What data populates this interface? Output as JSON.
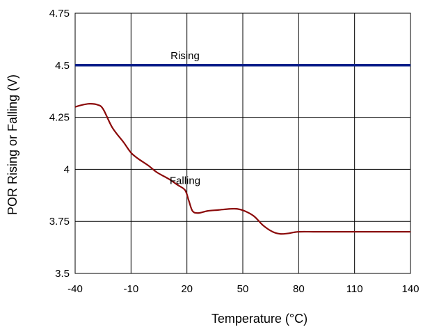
{
  "chart_data": {
    "type": "line",
    "title": "",
    "xlabel": "Temperature (°C)",
    "ylabel": "POR Rising or Falling (V)",
    "xlim": [
      -40,
      140
    ],
    "ylim": [
      3.5,
      4.75
    ],
    "x_ticks": [
      "-40",
      "-10",
      "20",
      "50",
      "80",
      "110",
      "140"
    ],
    "x_tick_values": [
      -40,
      -10,
      20,
      50,
      80,
      110,
      140
    ],
    "y_ticks": [
      "3.5",
      "3.75",
      "4",
      "4.25",
      "4.5",
      "4.75"
    ],
    "y_tick_values": [
      3.5,
      3.75,
      4.0,
      4.25,
      4.5,
      4.75
    ],
    "grid": true,
    "series": [
      {
        "name": "Rising",
        "color": "#0b1f8a",
        "x": [
          -40,
          140
        ],
        "y": [
          4.5,
          4.5
        ]
      },
      {
        "name": "Falling",
        "color": "#8b0a0a",
        "x": [
          -40,
          -36,
          -32,
          -28,
          -25,
          -20,
          -14,
          -10,
          -6,
          -1,
          4,
          10,
          15,
          19,
          21,
          23,
          26,
          31,
          37,
          43,
          47,
          51,
          56,
          61,
          66,
          70,
          74,
          80,
          90,
          110,
          130,
          140
        ],
        "y": [
          4.3,
          4.31,
          4.315,
          4.31,
          4.29,
          4.2,
          4.13,
          4.08,
          4.05,
          4.02,
          3.985,
          3.955,
          3.925,
          3.9,
          3.85,
          3.8,
          3.79,
          3.8,
          3.805,
          3.81,
          3.81,
          3.8,
          3.775,
          3.73,
          3.7,
          3.69,
          3.692,
          3.7,
          3.7,
          3.7,
          3.7,
          3.7
        ]
      }
    ],
    "annotations": [
      {
        "text": "Rising",
        "x": 19,
        "y": 4.53
      },
      {
        "text": "Falling",
        "x": 19,
        "y": 3.93
      }
    ]
  }
}
